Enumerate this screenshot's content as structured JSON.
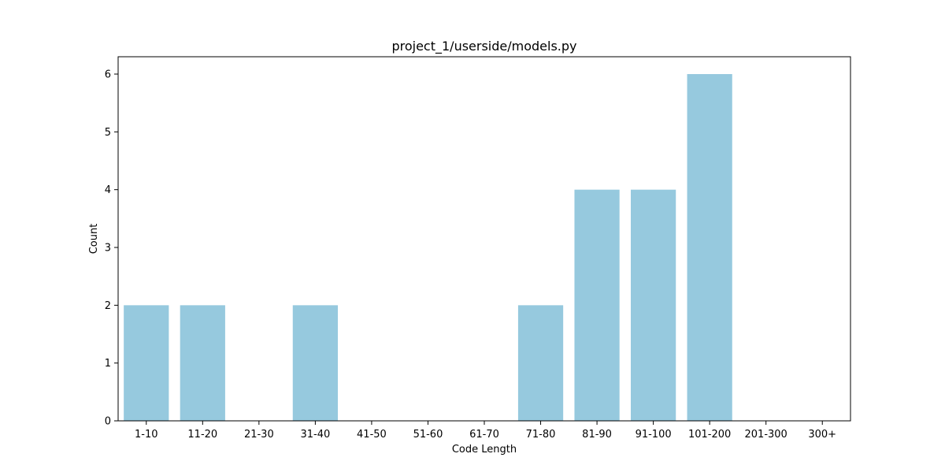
{
  "chart_data": {
    "type": "bar",
    "title": "project_1/userside/models.py",
    "xlabel": "Code Length",
    "ylabel": "Count",
    "categories": [
      "1-10",
      "11-20",
      "21-30",
      "31-40",
      "41-50",
      "51-60",
      "61-70",
      "71-80",
      "81-90",
      "91-100",
      "101-200",
      "201-300",
      "300+"
    ],
    "values": [
      2,
      2,
      0,
      2,
      0,
      0,
      0,
      2,
      4,
      4,
      6,
      0,
      0
    ],
    "ylim": [
      0,
      6.3
    ],
    "yticks": [
      0,
      1,
      2,
      3,
      4,
      5,
      6
    ],
    "grid": false,
    "legend": "none",
    "bar_color": "#96c9de"
  }
}
